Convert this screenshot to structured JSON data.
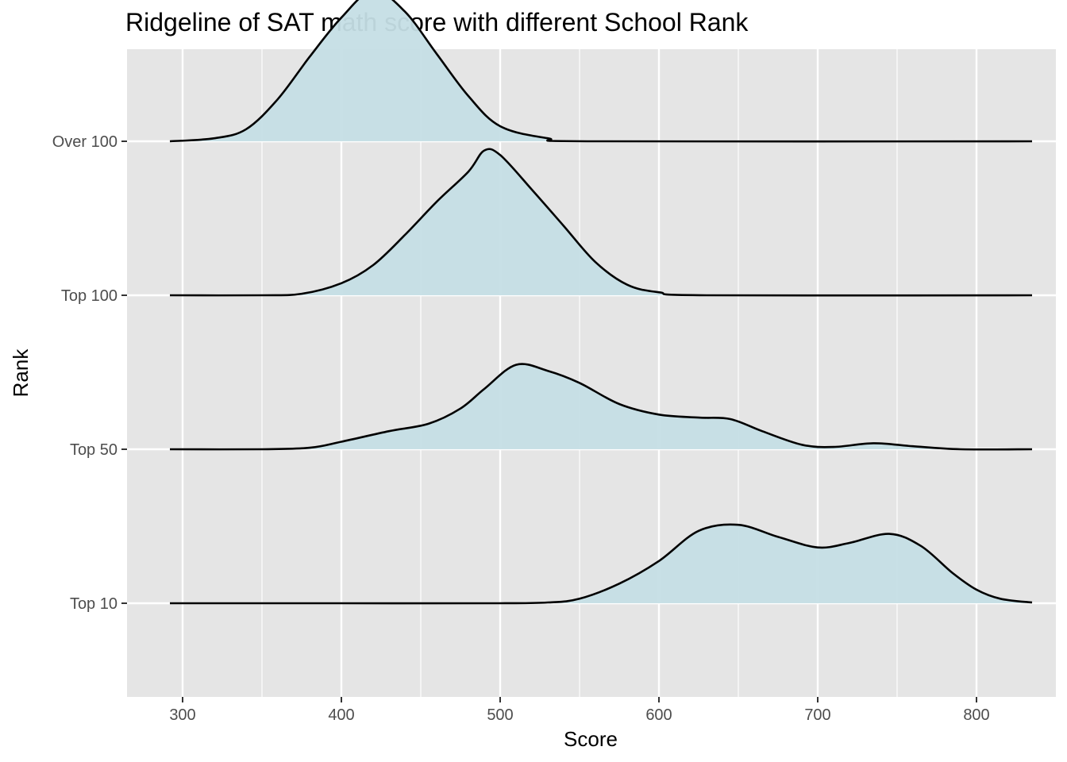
{
  "chart_data": {
    "type": "ridgeline",
    "title": "Ridgeline of SAT math score with different School Rank",
    "xlabel": "Score",
    "ylabel": "Rank",
    "xlim": [
      265,
      850
    ],
    "x_ticks": [
      300,
      400,
      500,
      600,
      700,
      800
    ],
    "grid": true,
    "fill_color": "#c5dee5",
    "line_color": "#000000",
    "panel_background": "#e5e5e5",
    "series": [
      {
        "name": "Top 10",
        "points": [
          [
            292,
            0
          ],
          [
            400,
            0
          ],
          [
            500,
            0
          ],
          [
            530,
            0.005
          ],
          [
            550,
            0.03
          ],
          [
            575,
            0.13
          ],
          [
            600,
            0.28
          ],
          [
            625,
            0.48
          ],
          [
            650,
            0.52
          ],
          [
            675,
            0.44
          ],
          [
            700,
            0.37
          ],
          [
            720,
            0.4
          ],
          [
            745,
            0.46
          ],
          [
            765,
            0.38
          ],
          [
            785,
            0.2
          ],
          [
            800,
            0.09
          ],
          [
            815,
            0.03
          ],
          [
            835,
            0.005
          ]
        ]
      },
      {
        "name": "Top 50",
        "points": [
          [
            292,
            0
          ],
          [
            350,
            0
          ],
          [
            380,
            0.01
          ],
          [
            400,
            0.05
          ],
          [
            430,
            0.12
          ],
          [
            455,
            0.17
          ],
          [
            475,
            0.27
          ],
          [
            490,
            0.4
          ],
          [
            510,
            0.56
          ],
          [
            530,
            0.52
          ],
          [
            550,
            0.44
          ],
          [
            575,
            0.3
          ],
          [
            600,
            0.23
          ],
          [
            625,
            0.21
          ],
          [
            645,
            0.2
          ],
          [
            665,
            0.12
          ],
          [
            690,
            0.03
          ],
          [
            710,
            0.015
          ],
          [
            735,
            0.04
          ],
          [
            760,
            0.02
          ],
          [
            790,
            0
          ],
          [
            835,
            0
          ]
        ]
      },
      {
        "name": "Top 100",
        "points": [
          [
            292,
            0
          ],
          [
            350,
            0
          ],
          [
            375,
            0.01
          ],
          [
            400,
            0.08
          ],
          [
            420,
            0.2
          ],
          [
            440,
            0.4
          ],
          [
            460,
            0.62
          ],
          [
            480,
            0.82
          ],
          [
            490,
            0.96
          ],
          [
            500,
            0.93
          ],
          [
            520,
            0.7
          ],
          [
            540,
            0.46
          ],
          [
            560,
            0.22
          ],
          [
            580,
            0.07
          ],
          [
            600,
            0.02
          ],
          [
            630,
            0
          ],
          [
            835,
            0
          ]
        ]
      },
      {
        "name": "Over 100",
        "points": [
          [
            292,
            0
          ],
          [
            320,
            0.02
          ],
          [
            340,
            0.08
          ],
          [
            360,
            0.28
          ],
          [
            380,
            0.56
          ],
          [
            400,
            0.82
          ],
          [
            420,
            1.0
          ],
          [
            440,
            0.86
          ],
          [
            460,
            0.58
          ],
          [
            480,
            0.3
          ],
          [
            500,
            0.1
          ],
          [
            530,
            0.02
          ],
          [
            560,
            0
          ],
          [
            835,
            0
          ]
        ]
      }
    ]
  }
}
